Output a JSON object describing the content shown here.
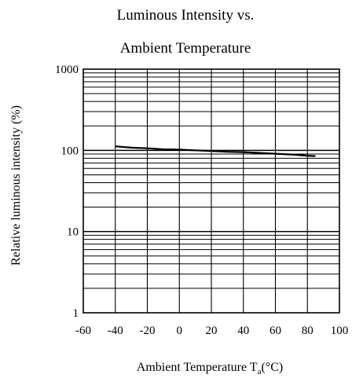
{
  "chart_data": {
    "type": "line",
    "title_line1": "Luminous Intensity vs.",
    "title_line2": "Ambient Temperature",
    "xlabel": "Ambient Temperature T",
    "xlabel_subscript": "a",
    "xlabel_unit": "(°C)",
    "ylabel": "Relative luminous intensity (%)",
    "y_scale": "log",
    "grid": true,
    "xlim": [
      -60,
      100
    ],
    "ylim": [
      1,
      1000
    ],
    "x_ticks": [
      "-60",
      "-40",
      "-20",
      "0",
      "20",
      "40",
      "60",
      "80",
      "100"
    ],
    "y_ticks": [
      "1",
      "10",
      "100",
      "1000"
    ],
    "series": [
      {
        "color": "#000000",
        "x": [
          -40,
          -30,
          -20,
          -10,
          0,
          10,
          20,
          30,
          40,
          50,
          60,
          70,
          80,
          85
        ],
        "y": [
          112,
          108,
          106,
          103,
          102,
          100,
          98,
          96,
          95,
          93,
          91,
          89,
          86,
          85
        ]
      }
    ]
  }
}
